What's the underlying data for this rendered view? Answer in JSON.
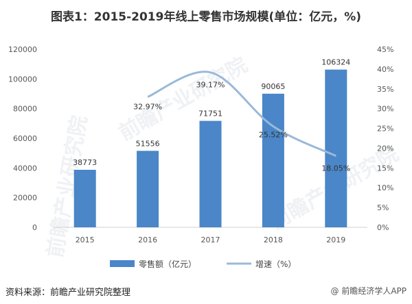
{
  "title": "图表1：2015-2019年线上零售市场规模(单位：亿元，%)",
  "source": "资料来源：前瞻产业研究院整理",
  "watermark": "前瞻产业研究院",
  "footer_mark": "@ 前瞻经济学人APP",
  "colors": {
    "bar": "#4a86c8",
    "line": "#9ab9d9",
    "axis": "#d0d0d0",
    "text": "#555555"
  },
  "chart_data": {
    "type": "bar",
    "categories": [
      "2015",
      "2016",
      "2017",
      "2018",
      "2019"
    ],
    "series": [
      {
        "name": "零售额（亿元）",
        "type": "bar",
        "axis": "left",
        "values": [
          38773,
          51556,
          71751,
          90065,
          106324
        ]
      },
      {
        "name": "增速（%）",
        "type": "line",
        "axis": "right",
        "values": [
          null,
          32.97,
          39.17,
          25.52,
          18.05
        ],
        "labels": [
          "",
          "32.97%",
          "39.17%",
          "25.52%",
          "18.05%"
        ]
      }
    ],
    "y_left": {
      "min": 0,
      "max": 120000,
      "ticks": [
        "0",
        "20000",
        "40000",
        "60000",
        "80000",
        "100000",
        "120000"
      ]
    },
    "y_right": {
      "min": 0,
      "max": 45,
      "ticks": [
        "0%",
        "5%",
        "10%",
        "15%",
        "20%",
        "25%",
        "30%",
        "35%",
        "40%",
        "45%"
      ]
    },
    "grid": false,
    "legend_position": "bottom"
  }
}
